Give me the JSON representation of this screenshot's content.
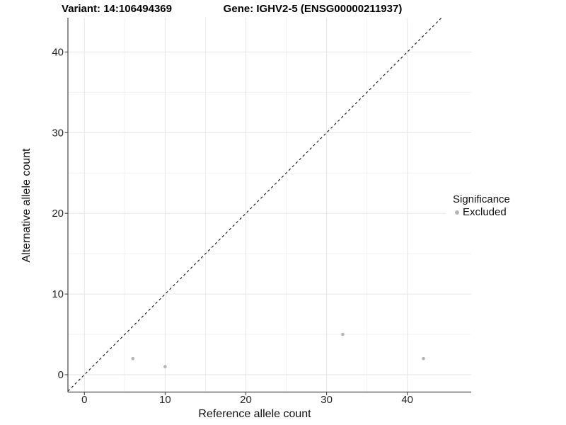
{
  "chart_data": {
    "type": "scatter",
    "title_left": "Variant: 14:106494369",
    "title_right": "Gene: IGHV2-5 (ENSG00000211937)",
    "xlabel": "Reference allele count",
    "ylabel": "Alternative allele count",
    "xlim": [
      -2.1,
      47.9
    ],
    "ylim": [
      -2.1,
      44.3
    ],
    "x_ticks": [
      0,
      10,
      20,
      30,
      40
    ],
    "y_ticks": [
      0,
      10,
      20,
      30,
      40
    ],
    "x_minor": [
      5,
      15,
      25,
      35
    ],
    "y_minor": [
      5,
      15,
      25,
      35
    ],
    "grid": true,
    "series": [
      {
        "name": "Excluded",
        "color": "#b5b5b5",
        "points": [
          [
            6,
            2
          ],
          [
            10,
            1
          ],
          [
            32,
            5
          ],
          [
            42,
            2
          ]
        ]
      }
    ],
    "reference_line": {
      "type": "identity-diagonal",
      "style": "dashed",
      "color": "#111111"
    },
    "legend": {
      "position": "right-inside",
      "title": "Significance",
      "entries": [
        {
          "label": "Excluded",
          "color": "#b5b5b5"
        }
      ]
    },
    "colors": {
      "point": "#b5b5b5",
      "axis_line": "#474747",
      "tick_label": "#262626",
      "grid_major": "#e6e6e6",
      "grid_minor": "#f2f2f2",
      "background": "#ffffff"
    }
  }
}
